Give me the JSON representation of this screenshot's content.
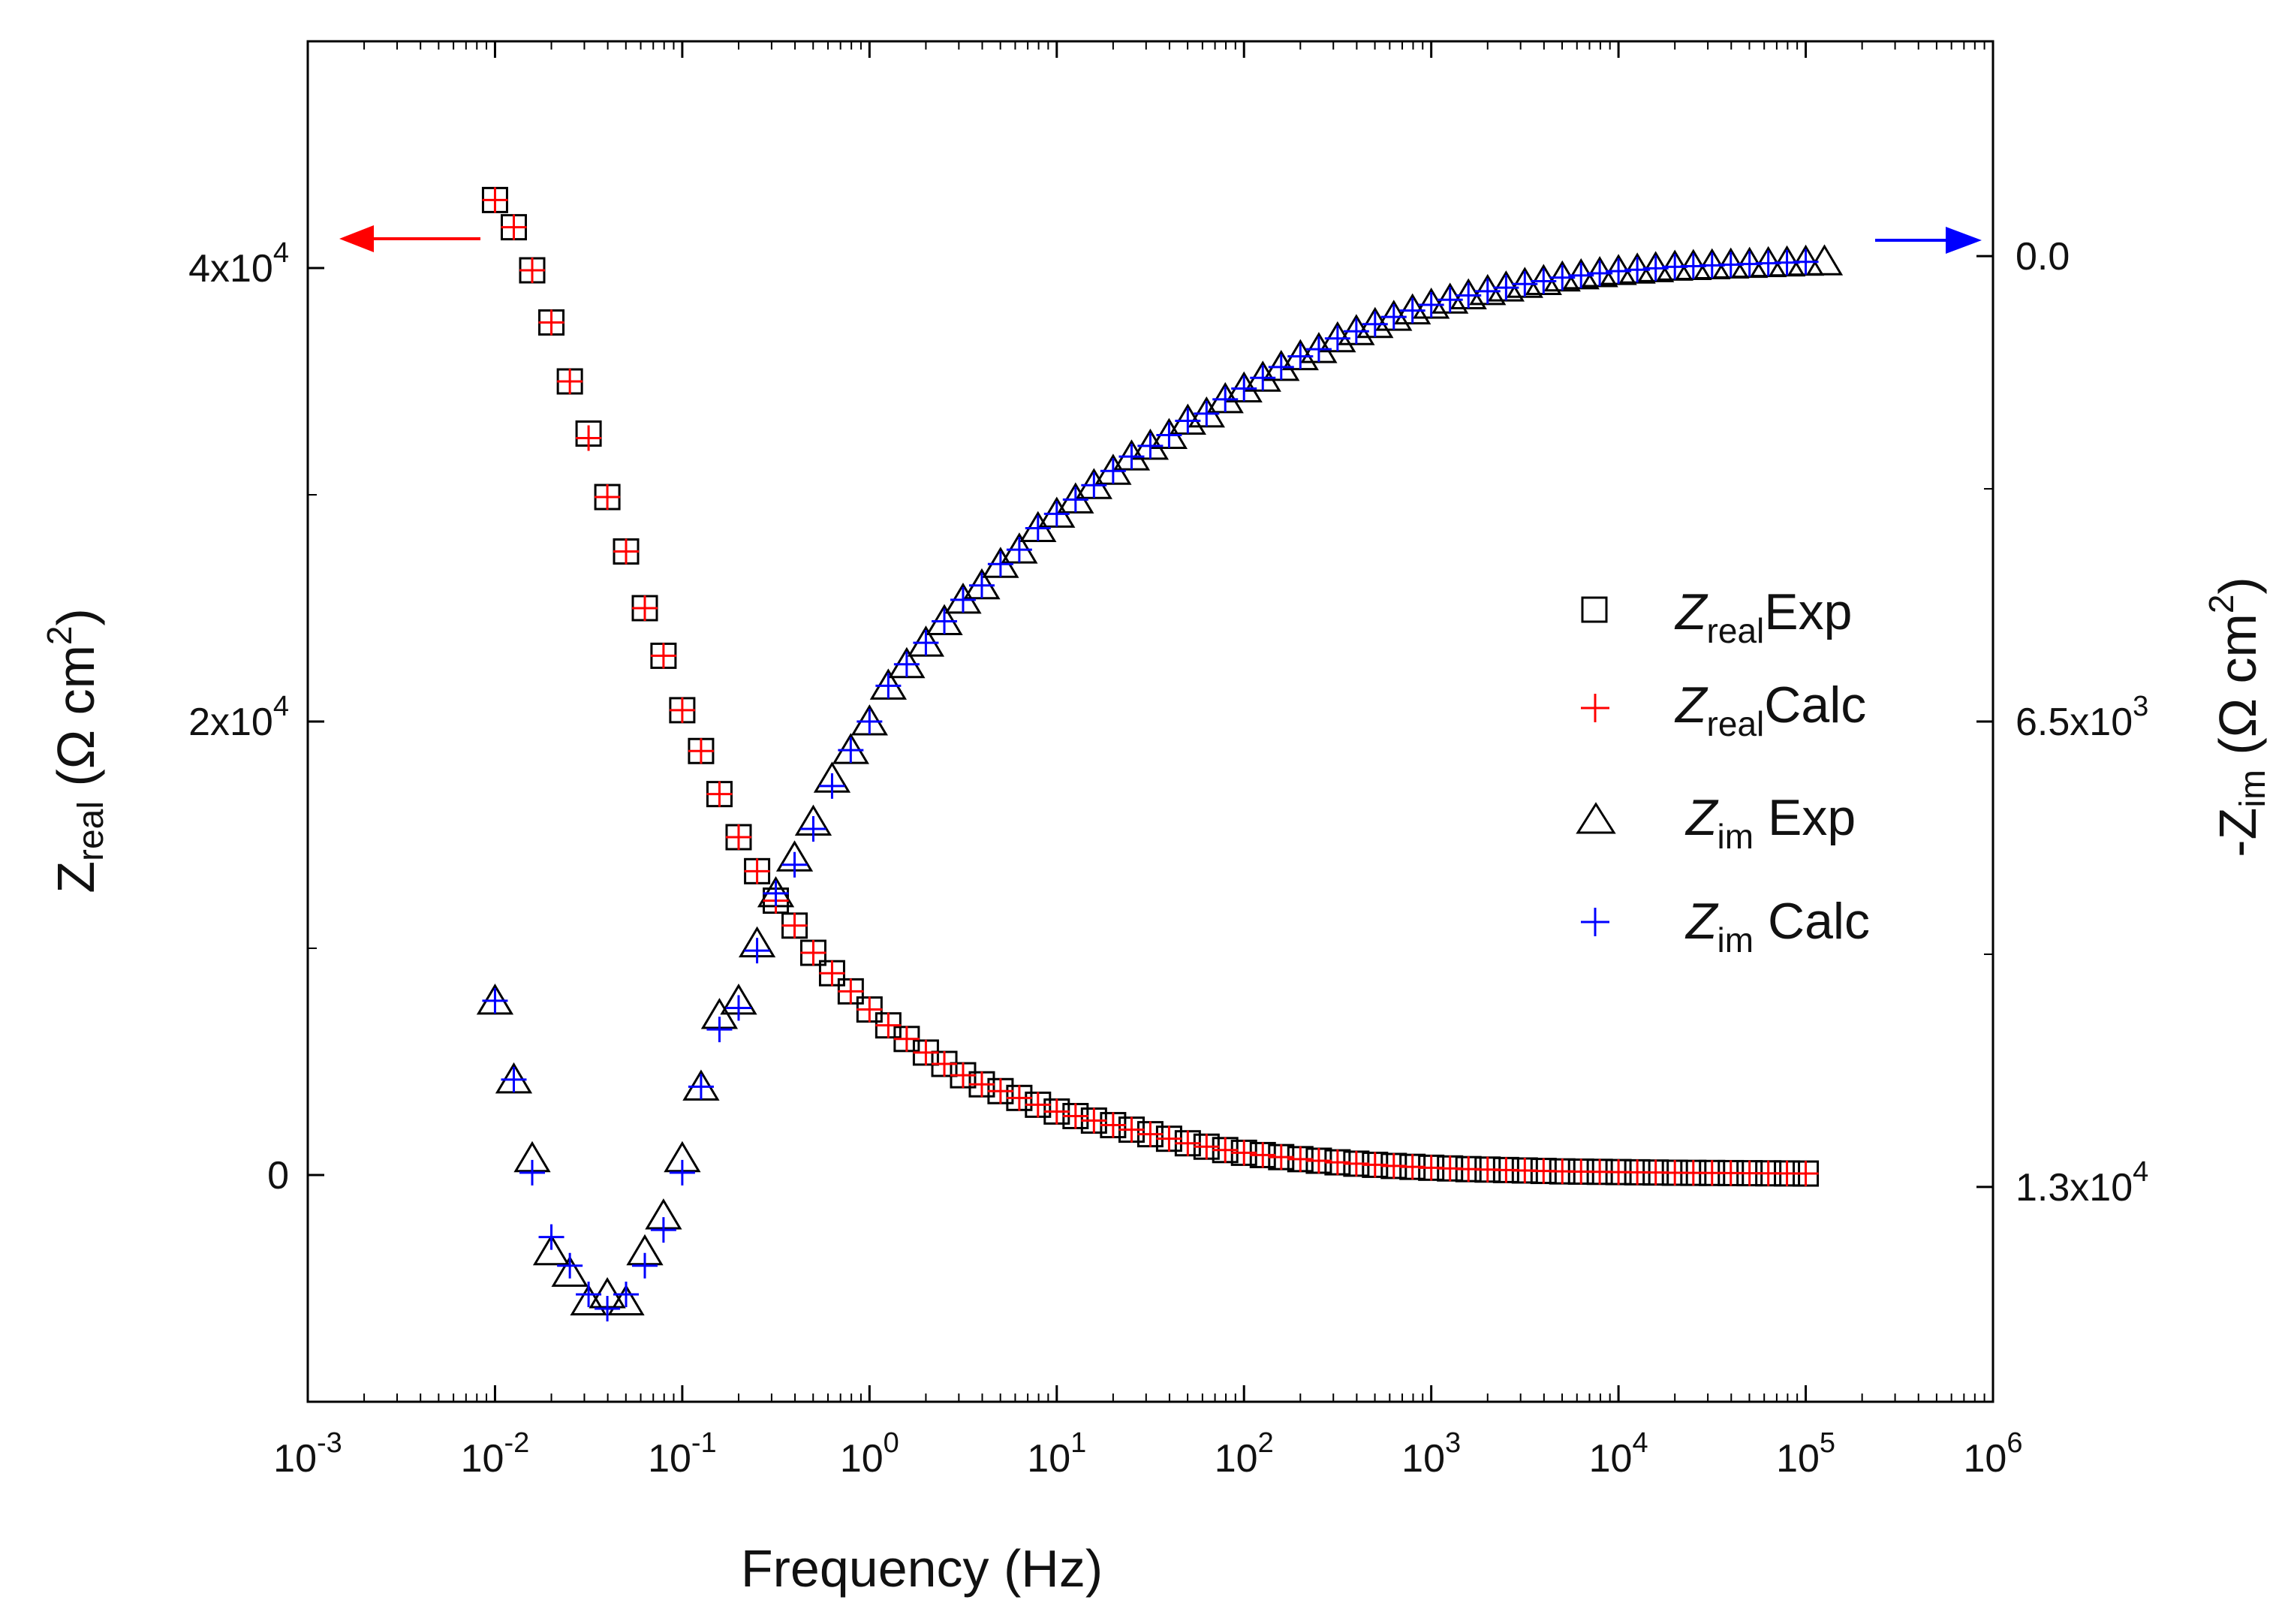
{
  "chart_data": {
    "type": "scatter",
    "x_axis": {
      "label": "Frequency (Hz)",
      "scale": "log",
      "range": [
        0.001,
        1000000
      ],
      "tick_labels": [
        {
          "base": "10",
          "exp": "-3"
        },
        {
          "base": "10",
          "exp": "-2"
        },
        {
          "base": "10",
          "exp": "-1"
        },
        {
          "base": "10",
          "exp": "0"
        },
        {
          "base": "10",
          "exp": "1"
        },
        {
          "base": "10",
          "exp": "2"
        },
        {
          "base": "10",
          "exp": "3"
        },
        {
          "base": "10",
          "exp": "4"
        },
        {
          "base": "10",
          "exp": "5"
        },
        {
          "base": "10",
          "exp": "6"
        }
      ]
    },
    "y_left": {
      "label_main": "Z",
      "label_sub": "real",
      "label_unit": " (Ω cm",
      "label_sup": "2",
      "label_close": ")",
      "range": [
        -10000,
        50000
      ],
      "tick_values": [
        40000,
        20000,
        0
      ],
      "tick_labels": [
        {
          "main": "4x10",
          "sup": "4"
        },
        {
          "main": "2x10",
          "sup": "4"
        },
        {
          "main": "0",
          "sup": ""
        }
      ]
    },
    "y_right": {
      "label_main": "-Z",
      "label_sub": "im",
      "label_unit": " (Ω cm",
      "label_sup": "2",
      "label_close": ")",
      "inverted": true,
      "range": [
        -3000,
        16000
      ],
      "tick_values": [
        0,
        6500,
        13000
      ],
      "tick_labels": [
        {
          "main": "0.0",
          "sup": ""
        },
        {
          "main": "6.5x10",
          "sup": "3"
        },
        {
          "main": "1.3x10",
          "sup": "4"
        }
      ]
    },
    "legend": [
      {
        "symbol": "square",
        "main": "Z",
        "sub": "real",
        "suffix": "Exp",
        "color": "#000000"
      },
      {
        "symbol": "plus",
        "main": "Z",
        "sub": "real",
        "suffix": "Calc",
        "color": "#ff0000"
      },
      {
        "symbol": "triangle",
        "main": "Z",
        "sub": "im",
        "suffix": " Exp",
        "color": "#000000"
      },
      {
        "symbol": "plus",
        "main": "Z",
        "sub": "im",
        "suffix": " Calc",
        "color": "#0000ff"
      }
    ],
    "series": [
      {
        "name": "Zreal Exp",
        "axis": "left",
        "marker": "square",
        "color": "#000000",
        "x": [
          0.01,
          0.0126,
          0.0158,
          0.02,
          0.0251,
          0.0316,
          0.0398,
          0.0501,
          0.0631,
          0.0794,
          0.1,
          0.126,
          0.158,
          0.2,
          0.251,
          0.316,
          0.398,
          0.501,
          0.631,
          0.794,
          1,
          1.26,
          1.58,
          2,
          2.51,
          3.16,
          3.98,
          5.01,
          6.31,
          7.94,
          10,
          12.6,
          15.8,
          20,
          25.1,
          31.6,
          39.8,
          50.1,
          63.1,
          79.4,
          100,
          126,
          158,
          200,
          251,
          316,
          398,
          501,
          631,
          794,
          1000,
          1260,
          1580,
          2000,
          2510,
          3160,
          3980,
          5010,
          6310,
          7940,
          10000,
          12600,
          15800,
          20000,
          25100,
          31600,
          39800,
          50100,
          63100,
          79400,
          100000
        ],
        "y": [
          43000,
          41800,
          39900,
          37600,
          35000,
          32700,
          29900,
          27500,
          25000,
          22900,
          20500,
          18700,
          16800,
          14900,
          13400,
          12100,
          11000,
          9800,
          8900,
          8100,
          7300,
          6600,
          6000,
          5400,
          4900,
          4400,
          4000,
          3700,
          3400,
          3100,
          2800,
          2600,
          2400,
          2200,
          2000,
          1800,
          1600,
          1400,
          1250,
          1100,
          980,
          880,
          790,
          700,
          630,
          560,
          500,
          450,
          400,
          360,
          320,
          290,
          260,
          240,
          220,
          200,
          180,
          160,
          150,
          140,
          130,
          120,
          110,
          100,
          95,
          90,
          85,
          80,
          75,
          70,
          65
        ]
      },
      {
        "name": "Zreal Calc",
        "axis": "left",
        "marker": "plus",
        "color": "#ff0000",
        "x": [
          0.01,
          0.0126,
          0.0158,
          0.02,
          0.0251,
          0.0316,
          0.0398,
          0.0501,
          0.0631,
          0.0794,
          0.1,
          0.126,
          0.158,
          0.2,
          0.251,
          0.316,
          0.398,
          0.501,
          0.631,
          0.794,
          1,
          1.26,
          1.58,
          2,
          2.51,
          3.16,
          3.98,
          5.01,
          6.31,
          7.94,
          10,
          12.6,
          15.8,
          20,
          25.1,
          31.6,
          39.8,
          50.1,
          63.1,
          79.4,
          100,
          126,
          158,
          200,
          251,
          316,
          398,
          501,
          631,
          794,
          1000,
          1260,
          1580,
          2000,
          2510,
          3160,
          3980,
          5010,
          6310,
          7940,
          10000,
          12600,
          15800,
          20000,
          25100,
          31600,
          39800,
          50100,
          63100,
          79400,
          100000
        ],
        "y": [
          43000,
          41800,
          39900,
          37600,
          35000,
          32500,
          29900,
          27500,
          25000,
          22900,
          20500,
          18700,
          16800,
          14900,
          13400,
          12100,
          11000,
          9800,
          8900,
          8100,
          7300,
          6600,
          6000,
          5400,
          4900,
          4400,
          4000,
          3700,
          3400,
          3100,
          2800,
          2600,
          2400,
          2200,
          2000,
          1800,
          1600,
          1400,
          1250,
          1100,
          980,
          880,
          790,
          700,
          630,
          560,
          500,
          450,
          400,
          360,
          320,
          290,
          260,
          240,
          220,
          200,
          180,
          160,
          150,
          140,
          130,
          120,
          110,
          100,
          95,
          90,
          85,
          80,
          75,
          70,
          65
        ]
      },
      {
        "name": "Zim Exp",
        "axis": "right",
        "marker": "triangle",
        "color": "#000000",
        "x": [
          0.01,
          0.0126,
          0.0158,
          0.02,
          0.0251,
          0.0316,
          0.0398,
          0.0501,
          0.0631,
          0.0794,
          0.1,
          0.126,
          0.158,
          0.2,
          0.251,
          0.316,
          0.398,
          0.501,
          0.631,
          0.794,
          1,
          1.26,
          1.58,
          2,
          2.51,
          3.16,
          3.98,
          5.01,
          6.31,
          7.94,
          10,
          12.6,
          15.8,
          20,
          25.1,
          31.6,
          39.8,
          50.1,
          63.1,
          79.4,
          100,
          126,
          158,
          200,
          251,
          316,
          398,
          501,
          631,
          794,
          1000,
          1260,
          1580,
          2000,
          2510,
          3160,
          3980,
          5010,
          6310,
          7940,
          10000,
          12600,
          15800,
          20000,
          25100,
          31600,
          39800,
          50100,
          63100,
          79400,
          100000,
          125900
        ],
        "y": [
          10400,
          11500,
          12600,
          13900,
          14200,
          14600,
          14500,
          14600,
          13900,
          13400,
          12600,
          11600,
          10600,
          10400,
          9600,
          8900,
          8400,
          7900,
          7300,
          6900,
          6500,
          6000,
          5700,
          5400,
          5100,
          4800,
          4600,
          4300,
          4100,
          3800,
          3600,
          3400,
          3200,
          3000,
          2800,
          2650,
          2500,
          2300,
          2200,
          2000,
          1850,
          1700,
          1550,
          1400,
          1300,
          1150,
          1050,
          950,
          850,
          760,
          680,
          610,
          550,
          490,
          440,
          390,
          350,
          300,
          270,
          240,
          210,
          190,
          170,
          150,
          140,
          130,
          120,
          110,
          100,
          90,
          80,
          75
        ]
      },
      {
        "name": "Zim Calc",
        "axis": "right",
        "marker": "plus",
        "color": "#0000ff",
        "x": [
          0.01,
          0.0126,
          0.0158,
          0.02,
          0.0251,
          0.0316,
          0.0398,
          0.0501,
          0.0631,
          0.0794,
          0.1,
          0.126,
          0.158,
          0.2,
          0.251,
          0.316,
          0.398,
          0.501,
          0.631,
          0.794,
          1,
          1.26,
          1.58,
          2,
          2.51,
          3.16,
          3.98,
          5.01,
          6.31,
          7.94,
          10,
          12.6,
          15.8,
          20,
          25.1,
          31.6,
          39.8,
          50.1,
          63.1,
          79.4,
          100,
          126,
          158,
          200,
          251,
          316,
          398,
          501,
          631,
          794,
          1000,
          1260,
          1580,
          2000,
          2510,
          3160,
          3980,
          5010,
          6310,
          7940,
          10000,
          12600,
          15800,
          20000,
          25100,
          31600,
          39800,
          50100,
          63100,
          79400,
          100000
        ],
        "y": [
          10400,
          11500,
          12800,
          13700,
          14100,
          14500,
          14700,
          14500,
          14100,
          13600,
          12800,
          11600,
          10800,
          10500,
          9700,
          8900,
          8500,
          8000,
          7400,
          6900,
          6500,
          6000,
          5700,
          5400,
          5100,
          4800,
          4600,
          4300,
          4100,
          3800,
          3600,
          3400,
          3200,
          3000,
          2800,
          2650,
          2500,
          2300,
          2200,
          2000,
          1850,
          1700,
          1550,
          1400,
          1300,
          1150,
          1050,
          950,
          850,
          760,
          680,
          610,
          550,
          490,
          440,
          390,
          350,
          300,
          270,
          240,
          210,
          190,
          170,
          150,
          140,
          130,
          120,
          110,
          100,
          90,
          80
        ]
      }
    ],
    "annotations": [
      {
        "type": "arrow",
        "direction": "left",
        "color": "#ff0000",
        "meaning": "left axis"
      },
      {
        "type": "arrow",
        "direction": "right",
        "color": "#0000ff",
        "meaning": "right axis"
      }
    ]
  }
}
